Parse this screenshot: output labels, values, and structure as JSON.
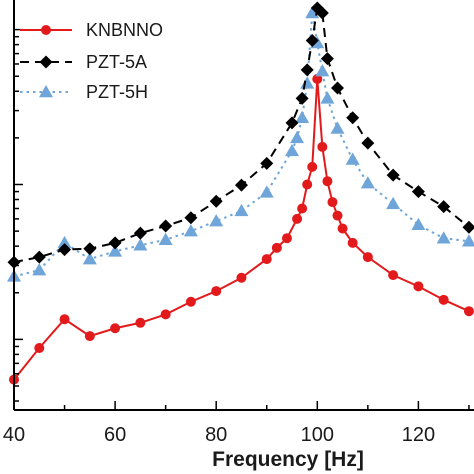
{
  "chart_data": {
    "type": "line",
    "title": "",
    "xlabel": "Frequency [Hz]",
    "ylabel": "",
    "xlim": [
      40,
      131
    ],
    "x_ticks": [
      40,
      60,
      80,
      100,
      120
    ],
    "y_scale": "log",
    "y_tick_labels_visible": false,
    "legend_position": "top-left",
    "series": [
      {
        "name": "KNBNNO",
        "color": "#e31a1c",
        "marker": "circle",
        "line_style": "solid",
        "points": [
          [
            40,
            0.0055
          ],
          [
            45,
            0.0088
          ],
          [
            50,
            0.0135
          ],
          [
            55,
            0.0105
          ],
          [
            60,
            0.0118
          ],
          [
            65,
            0.0128
          ],
          [
            70,
            0.0145
          ],
          [
            75,
            0.0175
          ],
          [
            80,
            0.0205
          ],
          [
            85,
            0.025
          ],
          [
            90,
            0.033
          ],
          [
            92,
            0.039
          ],
          [
            94,
            0.045
          ],
          [
            96,
            0.06
          ],
          [
            97,
            0.07
          ],
          [
            98,
            0.1
          ],
          [
            99,
            0.13
          ],
          [
            100,
            0.48
          ],
          [
            101,
            0.175
          ],
          [
            102,
            0.105
          ],
          [
            103,
            0.077
          ],
          [
            104,
            0.063
          ],
          [
            105,
            0.052
          ],
          [
            107,
            0.042
          ],
          [
            110,
            0.034
          ],
          [
            115,
            0.026
          ],
          [
            120,
            0.022
          ],
          [
            125,
            0.018
          ],
          [
            130,
            0.0152
          ]
        ]
      },
      {
        "name": "PZT-5A",
        "color": "#000000",
        "marker": "diamond",
        "line_style": "dashed",
        "points": [
          [
            40,
            0.0315
          ],
          [
            45,
            0.034
          ],
          [
            50,
            0.038
          ],
          [
            55,
            0.0385
          ],
          [
            60,
            0.042
          ],
          [
            65,
            0.0485
          ],
          [
            70,
            0.054
          ],
          [
            75,
            0.061
          ],
          [
            80,
            0.078
          ],
          [
            85,
            0.099
          ],
          [
            90,
            0.137
          ],
          [
            95,
            0.25
          ],
          [
            97,
            0.36
          ],
          [
            98,
            0.55
          ],
          [
            99,
            0.85
          ],
          [
            100,
            1.38
          ],
          [
            101,
            1.28
          ],
          [
            102,
            0.65
          ],
          [
            104,
            0.42
          ],
          [
            107,
            0.27
          ],
          [
            110,
            0.185
          ],
          [
            115,
            0.115
          ],
          [
            120,
            0.09
          ],
          [
            125,
            0.072
          ],
          [
            130,
            0.053
          ]
        ]
      },
      {
        "name": "PZT-5H",
        "color": "#6fa5d8",
        "marker": "triangle",
        "line_style": "dotted",
        "points": [
          [
            40,
            0.0255
          ],
          [
            45,
            0.028
          ],
          [
            50,
            0.042
          ],
          [
            55,
            0.033
          ],
          [
            60,
            0.037
          ],
          [
            65,
            0.0405
          ],
          [
            70,
            0.044
          ],
          [
            75,
            0.05
          ],
          [
            80,
            0.058
          ],
          [
            85,
            0.0675
          ],
          [
            90,
            0.089
          ],
          [
            95,
            0.165
          ],
          [
            96,
            0.2
          ],
          [
            97,
            0.27
          ],
          [
            98,
            0.45
          ],
          [
            99,
            1.28
          ],
          [
            100,
            0.82
          ],
          [
            101,
            0.54
          ],
          [
            102,
            0.36
          ],
          [
            104,
            0.23
          ],
          [
            107,
            0.145
          ],
          [
            110,
            0.102
          ],
          [
            115,
            0.075
          ],
          [
            120,
            0.055
          ],
          [
            125,
            0.045
          ],
          [
            130,
            0.043
          ]
        ]
      }
    ]
  }
}
